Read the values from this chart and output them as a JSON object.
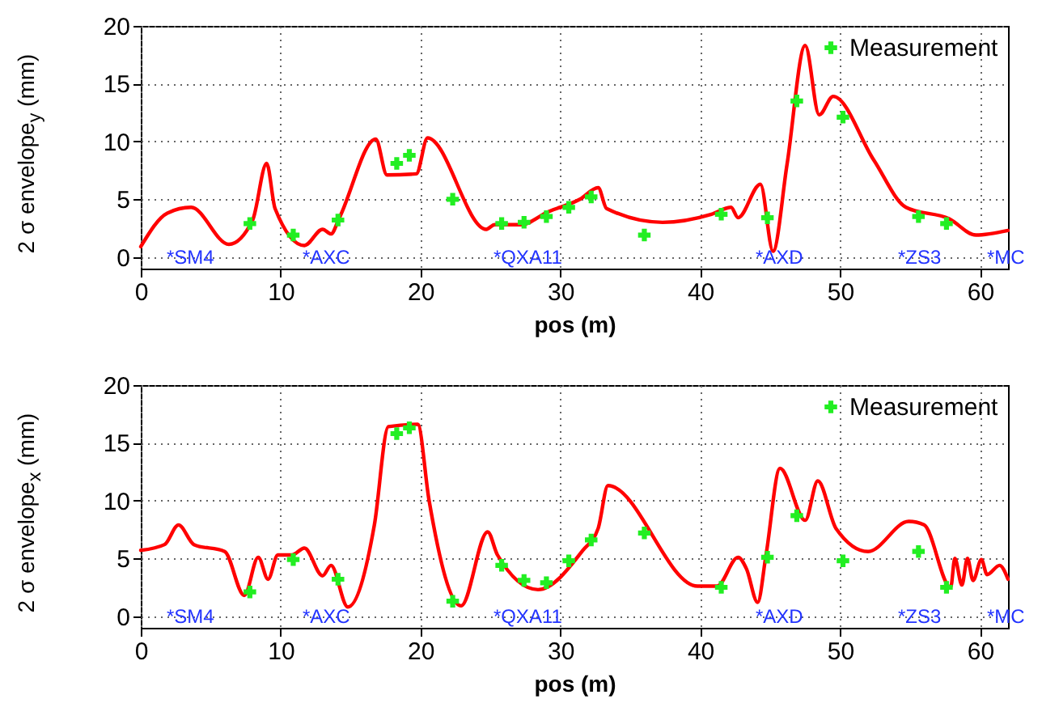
{
  "chart_data": [
    {
      "type": "line",
      "xlabel": "pos (m)",
      "ylabel": "2 σ envelope$_{y}$ (mm)",
      "xlim": [
        0,
        62
      ],
      "ylim": [
        -1,
        20
      ],
      "xticks": [
        0,
        10,
        20,
        30,
        40,
        50,
        60
      ],
      "yticks": [
        0,
        5,
        10,
        15,
        20
      ],
      "grid": true,
      "legend": "top right",
      "series": [
        {
          "color": "#ff0000",
          "x": [
            0,
            1.9,
            3.6,
            6.3,
            8.0,
            9.0,
            9.6,
            11.7,
            13.0,
            13.6,
            14.2,
            16.8,
            17.6,
            19.7,
            20.5,
            24.7,
            25.3,
            27.2,
            29.1,
            31.4,
            32.7,
            33.3,
            37.3,
            40.8,
            42.2,
            42.7,
            44.3,
            45.2,
            46.2,
            47.5,
            48.5,
            49.5,
            52.4,
            54.7,
            57.8,
            59.7,
            62.0
          ],
          "values": [
            0.9,
            3.8,
            4.3,
            1.1,
            3.2,
            8.1,
            4.2,
            1.0,
            2.4,
            2.0,
            3.4,
            10.2,
            7.1,
            7.2,
            10.3,
            2.4,
            2.8,
            2.8,
            3.9,
            5.0,
            6.0,
            4.2,
            3.0,
            3.7,
            4.3,
            3.4,
            6.3,
            0.5,
            8.0,
            18.3,
            12.3,
            13.9,
            8.4,
            4.3,
            3.3,
            1.9,
            2.3
          ]
        },
        {
          "type": "scatter",
          "marker": "cross",
          "name": "Measurement",
          "color": "#22ee22",
          "x": [
            7.8,
            10.9,
            14.1,
            18.3,
            19.2,
            22.3,
            25.8,
            27.4,
            29.0,
            30.6,
            32.2,
            36.0,
            41.5,
            44.8,
            46.9,
            50.2,
            55.6,
            57.6
          ],
          "values": [
            2.9,
            1.9,
            3.2,
            8.1,
            8.8,
            5.0,
            2.9,
            3.0,
            3.5,
            4.3,
            5.2,
            1.9,
            3.7,
            3.4,
            13.5,
            12.1,
            3.5,
            2.9
          ]
        }
      ],
      "annotations": [
        "*SM4",
        "*AXC",
        "*QXA11",
        "*AXD",
        "*ZS3",
        "*MC"
      ]
    },
    {
      "type": "line",
      "xlabel": "pos (m)",
      "ylabel": "2 σ envelope$_{x}$ (mm)",
      "xlim": [
        0,
        62
      ],
      "ylim": [
        -1,
        20
      ],
      "xticks": [
        0,
        10,
        20,
        30,
        40,
        50,
        60
      ],
      "yticks": [
        0,
        5,
        10,
        15,
        20
      ],
      "grid": true,
      "legend": "top right",
      "series": [
        {
          "color": "#ff0000",
          "x": [
            0,
            1.7,
            2.7,
            3.8,
            6.0,
            7.4,
            8.4,
            9.1,
            9.8,
            10.8,
            11.7,
            13.0,
            13.6,
            14.8,
            16.7,
            17.7,
            19.8,
            20.6,
            22.9,
            24.8,
            25.5,
            28.4,
            31.6,
            32.7,
            33.4,
            39.8,
            41.2,
            42.7,
            43.3,
            44.1,
            44.7,
            45.7,
            47.5,
            48.4,
            49.7,
            52.0,
            54.9,
            56.0,
            57.9,
            58.2,
            58.7,
            59.1,
            59.5,
            60.1,
            60.5,
            61.4,
            62.0
          ],
          "values": [
            5.7,
            6.2,
            7.9,
            6.2,
            5.6,
            1.8,
            5.1,
            3.2,
            5.3,
            5.3,
            5.9,
            3.5,
            4.4,
            0.8,
            7.9,
            16.4,
            16.6,
            10.1,
            0.9,
            7.3,
            5.3,
            2.3,
            5.7,
            7.6,
            11.3,
            2.6,
            2.6,
            5.1,
            4.1,
            1.2,
            5.3,
            12.8,
            8.3,
            11.7,
            7.6,
            5.6,
            8.2,
            7.9,
            2.5,
            5.0,
            2.7,
            5.0,
            3.1,
            4.9,
            3.6,
            4.4,
            3.2
          ]
        },
        {
          "type": "scatter",
          "marker": "cross",
          "name": "Measurement",
          "color": "#22ee22",
          "x": [
            7.8,
            10.9,
            14.1,
            18.3,
            19.2,
            22.3,
            25.8,
            27.4,
            29.0,
            30.6,
            32.2,
            36.0,
            41.5,
            44.8,
            46.9,
            50.2,
            55.6,
            57.6
          ],
          "values": [
            2.1,
            4.9,
            3.2,
            15.8,
            16.3,
            1.3,
            4.4,
            3.1,
            2.9,
            4.8,
            6.6,
            7.2,
            2.5,
            5.1,
            8.7,
            4.8,
            5.6,
            2.5
          ]
        }
      ],
      "annotations": [
        "*SM4",
        "*AXC",
        "*QXA11",
        "*AXD",
        "*ZS3",
        "*MC"
      ]
    }
  ]
}
